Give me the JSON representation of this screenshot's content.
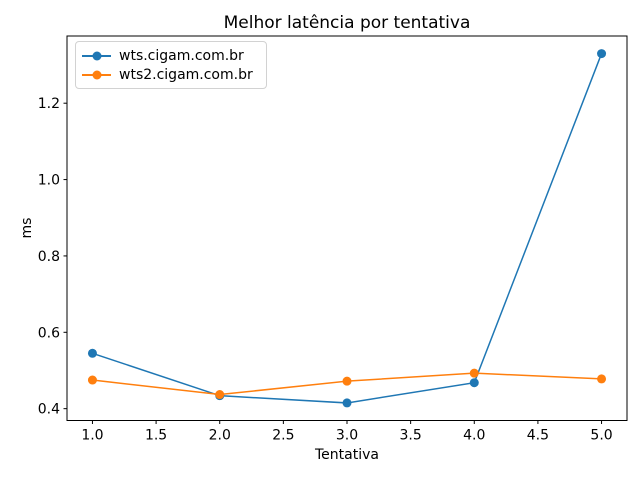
{
  "figure": {
    "background": "#ffffff"
  },
  "chart_data": {
    "type": "line",
    "title": "Melhor latência por tentativa",
    "xlabel": "Tentativa",
    "ylabel": "ms",
    "x": [
      1,
      2,
      3,
      4,
      5
    ],
    "series": [
      {
        "name": "wts.cigam.com.br",
        "color": "#1f77b4",
        "values": [
          0.545,
          0.434,
          0.415,
          0.468,
          1.33
        ]
      },
      {
        "name": "wts2.cigam.com.br",
        "color": "#ff7f0e",
        "values": [
          0.475,
          0.437,
          0.472,
          0.493,
          0.478
        ]
      }
    ],
    "xticks": [
      1.0,
      1.5,
      2.0,
      2.5,
      3.0,
      3.5,
      4.0,
      4.5,
      5.0
    ],
    "yticks": [
      0.4,
      0.6,
      0.8,
      1.0,
      1.2
    ],
    "xlim": [
      0.8,
      5.2
    ],
    "ylim": [
      0.369,
      1.376
    ],
    "grid": false,
    "legend_position": "upper-left",
    "marker": "circle",
    "line_width": 1.5,
    "marker_radius": 4.5,
    "axis_color": "#000000",
    "tick_label_format_decimals": 1
  }
}
